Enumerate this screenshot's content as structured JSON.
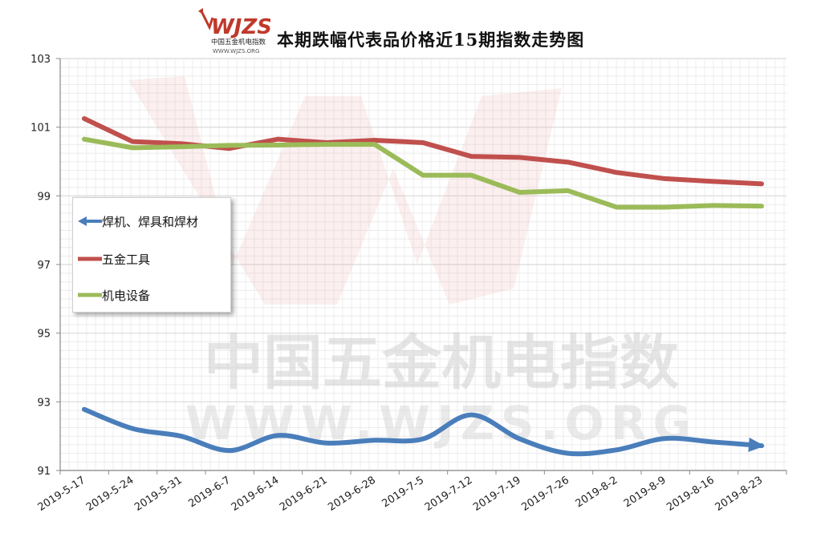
{
  "title": "本期跌幅代表品价格近15期指数走势图",
  "logo": {
    "mark": "WJZS",
    "line1": "中国五金机电指数",
    "line2": "WWW.WJZS.ORG"
  },
  "watermark": {
    "text_cn": "中国五金机电指数",
    "text_en": "WWW.WJZS.ORG"
  },
  "colors": {
    "series_blue": "#4a7ebb",
    "series_red": "#c0504d",
    "series_green": "#9bbb59",
    "grid_major": "#dcdcdc",
    "grid_minor": "#ececec"
  },
  "chart_data": {
    "type": "line",
    "title": "本期跌幅代表品价格近15期指数走势图",
    "xlabel": "",
    "ylabel": "",
    "ylim": [
      91,
      103
    ],
    "yticks": [
      "91",
      "93",
      "95",
      "97",
      "99",
      "101",
      "103"
    ],
    "categories": [
      "2019-5-17",
      "2019-5-24",
      "2019-5-31",
      "2019-6-7",
      "2019-6-14",
      "2019-6-21",
      "2019-6-28",
      "2019-7-5",
      "2019-7-12",
      "2019-7-19",
      "2019-7-26",
      "2019-8-2",
      "2019-8-9",
      "2019-8-16",
      "2019-8-23"
    ],
    "grid": true,
    "legend_position": "left-middle",
    "series": [
      {
        "name": "焊机、焊具和焊材",
        "color": "#4a7ebb",
        "smooth": true,
        "arrow": true,
        "values": [
          92.78,
          92.22,
          92.0,
          91.58,
          92.02,
          91.8,
          91.88,
          91.92,
          92.62,
          91.92,
          91.5,
          91.6,
          91.93,
          91.83,
          91.72
        ]
      },
      {
        "name": "五金工具",
        "color": "#c0504d",
        "smooth": false,
        "arrow": false,
        "values": [
          101.25,
          100.58,
          100.52,
          100.38,
          100.65,
          100.55,
          100.62,
          100.55,
          100.15,
          100.12,
          99.98,
          99.68,
          99.5,
          99.42,
          99.35
        ]
      },
      {
        "name": "机电设备",
        "color": "#9bbb59",
        "smooth": false,
        "arrow": false,
        "values": [
          100.65,
          100.4,
          100.43,
          100.47,
          100.48,
          100.5,
          100.5,
          99.6,
          99.6,
          99.1,
          99.15,
          98.67,
          98.67,
          98.72,
          98.7
        ]
      }
    ]
  }
}
